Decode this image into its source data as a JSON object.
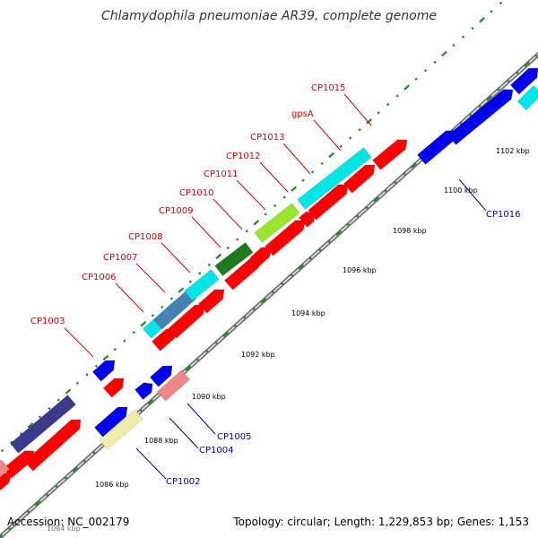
{
  "title": "Chlamydophila pneumoniae AR39, complete genome",
  "accession": "Accession: NC_002179",
  "summary": "Topology: circular; Length: 1,229,853 bp; Genes: 1,153",
  "colors": {
    "backbone": "#777777",
    "tick": "#1a8a1a",
    "forward_label": "#dd0000",
    "reverse_label": "#0000aa",
    "red": "#ff0000",
    "blue": "#0000ee",
    "cyan": "#00e5e5",
    "steel": "#4682b4",
    "darkgreen": "#1e7a1e",
    "lightgreen": "#99e62e",
    "slate": "#3b3a8c",
    "pink": "#ee8888",
    "khaki": "#eeeeaa"
  },
  "tick_labels": [
    "1084 kbp",
    "1086 kbp",
    "1088 kbp",
    "1090 kbp",
    "1092 kbp",
    "1094 kbp",
    "1096 kbp",
    "1098 kbp",
    "1100 kbp",
    "1102 kbp"
  ],
  "gene_labels": {
    "forward": [
      "CP1003",
      "CP1006",
      "CP1007",
      "CP1008",
      "CP1009",
      "CP1010",
      "CP1011",
      "CP1012",
      "CP1013",
      "gpsA",
      "CP1015"
    ],
    "reverse": [
      "CP1002",
      "CP1004",
      "CP1005",
      "CP1016"
    ]
  }
}
